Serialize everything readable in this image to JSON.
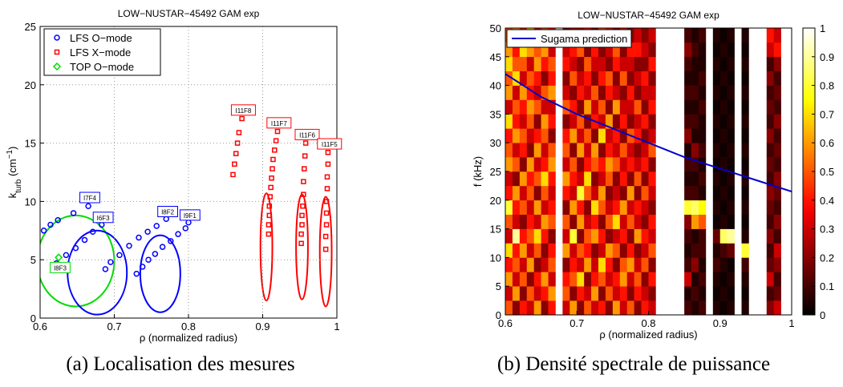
{
  "chart_data": [
    {
      "type": "scatter",
      "title": "LOW−NUSTAR−45492 GAM exp",
      "xlabel": "ρ (normalized radius)",
      "ylabel": [
        "k",
        "turb",
        " (cm",
        "−1",
        ")"
      ],
      "xlim": [
        0.6,
        1
      ],
      "ylim": [
        0,
        25
      ],
      "xticks": [
        0.6,
        0.7,
        0.8,
        0.9,
        1
      ],
      "yticks": [
        0,
        5,
        10,
        15,
        20,
        25
      ],
      "grid": true,
      "legend": "upper-left",
      "caption": "(a) Localisation des mesures",
      "series": [
        {
          "name": "LFS O−mode",
          "color": "#0000ff",
          "marker": "circle",
          "x": [
            0.605,
            0.614,
            0.624,
            0.645,
            0.665,
            0.622,
            0.635,
            0.648,
            0.66,
            0.671,
            0.683,
            0.688,
            0.695,
            0.707,
            0.72,
            0.733,
            0.745,
            0.757,
            0.77,
            0.73,
            0.738,
            0.746,
            0.755,
            0.765,
            0.776,
            0.786,
            0.796,
            0.8
          ],
          "y": [
            7.5,
            8.0,
            8.4,
            9.0,
            9.6,
            4.7,
            5.4,
            6.0,
            6.7,
            7.4,
            8.0,
            4.2,
            4.8,
            5.4,
            6.2,
            6.9,
            7.4,
            7.9,
            8.5,
            3.8,
            4.4,
            5.0,
            5.5,
            6.1,
            6.6,
            7.2,
            7.7,
            8.2
          ]
        },
        {
          "name": "LFS X−mode",
          "color": "#ff0000",
          "marker": "square",
          "x": [
            0.86,
            0.862,
            0.864,
            0.866,
            0.868,
            0.872,
            0.908,
            0.908,
            0.909,
            0.909,
            0.91,
            0.911,
            0.912,
            0.913,
            0.914,
            0.916,
            0.918,
            0.92,
            0.952,
            0.952,
            0.953,
            0.953,
            0.954,
            0.955,
            0.955,
            0.956,
            0.957,
            0.958,
            0.985,
            0.985,
            0.986,
            0.986,
            0.986,
            0.987,
            0.987,
            0.988,
            0.988
          ],
          "y": [
            12.3,
            13.2,
            14.1,
            15.0,
            15.9,
            17.1,
            7.2,
            8.0,
            8.8,
            9.6,
            10.4,
            11.2,
            12.0,
            12.8,
            13.6,
            14.4,
            15.2,
            16.0,
            6.4,
            7.2,
            8.0,
            8.8,
            9.6,
            10.6,
            11.7,
            12.8,
            13.9,
            15.0,
            5.9,
            7.0,
            8.0,
            9.0,
            10.0,
            11.1,
            12.1,
            13.2,
            14.2
          ]
        },
        {
          "name": "TOP O−mode",
          "color": "#00dd00",
          "marker": "diamond",
          "x": [
            0.625
          ],
          "y": [
            5.2
          ]
        }
      ],
      "annotations": [
        {
          "text": "I7F4",
          "x": 0.667,
          "y": 10.3,
          "color": "#0000ff"
        },
        {
          "text": "I6F3",
          "x": 0.685,
          "y": 8.6,
          "color": "#0000ff"
        },
        {
          "text": "I8F2",
          "x": 0.772,
          "y": 9.1,
          "color": "#0000ff"
        },
        {
          "text": "I9F1",
          "x": 0.802,
          "y": 8.8,
          "color": "#0000ff"
        },
        {
          "text": "I8F3",
          "x": 0.627,
          "y": 4.3,
          "color": "#00dd00"
        },
        {
          "text": "I11F8",
          "x": 0.874,
          "y": 17.8,
          "color": "#ff0000"
        },
        {
          "text": "I11F7",
          "x": 0.922,
          "y": 16.7,
          "color": "#ff0000"
        },
        {
          "text": "I11F6",
          "x": 0.96,
          "y": 15.7,
          "color": "#ff0000"
        },
        {
          "text": "I11F5",
          "x": 0.99,
          "y": 14.9,
          "color": "#ff0000"
        }
      ],
      "ellipses": [
        {
          "center": [
            0.648,
            4.9
          ],
          "radii": [
            0.052,
            3.9
          ],
          "color": "#00dd00"
        },
        {
          "center": [
            0.677,
            3.9
          ],
          "radii": [
            0.04,
            3.6
          ],
          "color": "#0000ff"
        },
        {
          "center": [
            0.762,
            3.8
          ],
          "radii": [
            0.027,
            3.3
          ],
          "color": "#0000ff"
        },
        {
          "center": [
            0.905,
            6.1
          ],
          "radii": [
            0.008,
            4.6
          ],
          "color": "#ff0000"
        },
        {
          "center": [
            0.953,
            6.1
          ],
          "radii": [
            0.008,
            4.5
          ],
          "color": "#ff0000"
        },
        {
          "center": [
            0.985,
            5.7
          ],
          "radii": [
            0.008,
            4.7
          ],
          "color": "#ff0000"
        }
      ]
    },
    {
      "type": "heatmap",
      "title": "LOW−NUSTAR−45492 GAM exp",
      "xlabel": "ρ (normalized radius)",
      "ylabel": "f (kHz)",
      "xlim": [
        0.6,
        1
      ],
      "ylim": [
        0,
        50
      ],
      "xticks": [
        0.6,
        0.7,
        0.8,
        0.9,
        1
      ],
      "yticks": [
        0,
        5,
        10,
        15,
        20,
        25,
        30,
        35,
        40,
        45,
        50
      ],
      "legend": "upper-left",
      "colormap": "hot",
      "caption": "(b) Densité spectrale de puissance",
      "colorbar": {
        "lim": [
          0,
          1
        ],
        "ticks": [
          0,
          0.1,
          0.2,
          0.3,
          0.4,
          0.5,
          0.6,
          0.7,
          0.8,
          0.9,
          1
        ]
      },
      "y_edges": [
        0,
        2.5,
        5,
        7.5,
        10,
        12.5,
        15,
        17.5,
        20,
        22.5,
        25,
        27.5,
        30,
        32.5,
        35,
        37.5,
        40,
        42.5,
        45,
        47.5,
        50
      ],
      "x_edges": [
        [
          0.6,
          0.61
        ],
        [
          0.61,
          0.62
        ],
        [
          0.62,
          0.63
        ],
        [
          0.63,
          0.64
        ],
        [
          0.64,
          0.65
        ],
        [
          0.65,
          0.66
        ],
        [
          0.66,
          0.67
        ],
        [
          0.68,
          0.69
        ],
        [
          0.69,
          0.7
        ],
        [
          0.7,
          0.71
        ],
        [
          0.71,
          0.72
        ],
        [
          0.72,
          0.73
        ],
        [
          0.73,
          0.74
        ],
        [
          0.74,
          0.75
        ],
        [
          0.75,
          0.76
        ],
        [
          0.76,
          0.77
        ],
        [
          0.77,
          0.78
        ],
        [
          0.78,
          0.79
        ],
        [
          0.79,
          0.8
        ],
        [
          0.8,
          0.81
        ],
        [
          0.85,
          0.86
        ],
        [
          0.86,
          0.87
        ],
        [
          0.87,
          0.88
        ],
        [
          0.89,
          0.9
        ],
        [
          0.9,
          0.91
        ],
        [
          0.91,
          0.92
        ],
        [
          0.93,
          0.94
        ],
        [
          0.965,
          0.975
        ],
        [
          0.975,
          0.985
        ]
      ],
      "z": [
        [
          0.5,
          0.3,
          0.6,
          0.4,
          0.7,
          0.3,
          0.5,
          0.8,
          0.4,
          0.3,
          0.6,
          0.5,
          0.4,
          0.7,
          0.3,
          0.6,
          0.5,
          0.7,
          0.6,
          0.5
        ],
        [
          0.2,
          0.6,
          0.3,
          0.5,
          0.4,
          0.9,
          0.3,
          0.4,
          0.6,
          0.2,
          0.5,
          0.3,
          0.6,
          0.4,
          0.5,
          0.3,
          0.7,
          0.5,
          0.4,
          0.6
        ],
        [
          0.4,
          0.2,
          0.5,
          0.3,
          0.6,
          0.4,
          0.2,
          0.5,
          0.3,
          0.6,
          0.2,
          0.4,
          0.5,
          0.3,
          0.4,
          0.6,
          0.3,
          0.5,
          0.7,
          0.4
        ],
        [
          0.3,
          0.5,
          0.2,
          0.6,
          0.3,
          0.5,
          0.4,
          0.3,
          0.5,
          0.4,
          0.6,
          0.2,
          0.3,
          0.5,
          0.6,
          0.4,
          0.5,
          0.3,
          0.6,
          0.7
        ],
        [
          0.6,
          0.3,
          0.4,
          0.2,
          0.5,
          0.7,
          0.3,
          0.6,
          0.2,
          0.5,
          0.3,
          0.6,
          0.4,
          0.2,
          0.5,
          0.3,
          0.4,
          0.6,
          0.5,
          0.3
        ],
        [
          0.2,
          0.4,
          0.6,
          0.3,
          0.2,
          0.4,
          0.6,
          0.3,
          0.5,
          0.7,
          0.4,
          0.3,
          0.5,
          0.6,
          0.3,
          0.5,
          0.2,
          0.4,
          0.6,
          0.5
        ],
        [
          0.4,
          0.6,
          0.3,
          0.5,
          0.4,
          0.2,
          0.5,
          0.4,
          0.3,
          0.4,
          0.6,
          0.5,
          0.2,
          0.4,
          0.3,
          0.6,
          0.4,
          0.5,
          0.3,
          0.4
        ],
        [
          0.3,
          0.5,
          0.4,
          0.2,
          0.6,
          0.3,
          0.5,
          0.2,
          0.4,
          0.6,
          0.3,
          0.5,
          0.4,
          0.2,
          0.5,
          0.3,
          0.2,
          0.4,
          0.3,
          0.2
        ],
        [
          0.6,
          0.2,
          0.5,
          0.4,
          0.3,
          0.8,
          0.2,
          0.6,
          0.3,
          0.4,
          0.5,
          0.2,
          0.6,
          0.3,
          0.4,
          0.2,
          0.5,
          0.3,
          0.4,
          0.3
        ],
        [
          0.2,
          0.4,
          0.7,
          0.3,
          0.5,
          0.2,
          0.6,
          0.4,
          0.8,
          0.3,
          0.2,
          0.6,
          0.3,
          0.5,
          0.2,
          0.4,
          0.3,
          0.2,
          0.5,
          0.3
        ],
        [
          0.5,
          0.3,
          0.2,
          0.6,
          0.4,
          0.5,
          0.3,
          0.2,
          0.5,
          0.7,
          0.4,
          0.3,
          0.5,
          0.2,
          0.6,
          0.3,
          0.4,
          0.5,
          0.2,
          0.4
        ],
        [
          0.3,
          0.6,
          0.4,
          0.3,
          0.2,
          0.6,
          0.4,
          0.7,
          0.3,
          0.2,
          0.5,
          0.6,
          0.2,
          0.4,
          0.3,
          0.5,
          0.2,
          0.3,
          0.4,
          0.2
        ],
        [
          0.4,
          0.2,
          0.5,
          0.7,
          0.3,
          0.4,
          0.2,
          0.5,
          0.6,
          0.3,
          0.4,
          0.2,
          0.7,
          0.3,
          0.5,
          0.2,
          0.4,
          0.3,
          0.2,
          0.5
        ],
        [
          0.2,
          0.5,
          0.3,
          0.4,
          0.6,
          0.2,
          0.5,
          0.3,
          0.2,
          0.5,
          0.6,
          0.4,
          0.3,
          0.6,
          0.2,
          0.4,
          0.5,
          0.2,
          0.3,
          0.4
        ],
        [
          0.6,
          0.3,
          0.4,
          0.2,
          0.5,
          0.3,
          0.7,
          0.4,
          0.3,
          0.2,
          0.5,
          0.3,
          0.4,
          0.2,
          0.6,
          0.3,
          0.2,
          0.4,
          0.5,
          0.2
        ],
        [
          0.3,
          0.4,
          0.6,
          0.5,
          0.2,
          0.4,
          0.3,
          0.6,
          0.2,
          0.4,
          0.3,
          0.5,
          0.2,
          0.4,
          0.3,
          0.2,
          0.5,
          0.3,
          0.2,
          0.4
        ],
        [
          0.5,
          0.2,
          0.3,
          0.6,
          0.4,
          0.2,
          0.5,
          0.3,
          0.6,
          0.2,
          0.4,
          0.3,
          0.5,
          0.2,
          0.3,
          0.4,
          0.2,
          0.3,
          0.4,
          0.2
        ],
        [
          0.2,
          0.4,
          0.5,
          0.3,
          0.2,
          0.6,
          0.3,
          0.4,
          0.2,
          0.5,
          0.3,
          0.2,
          0.4,
          0.3,
          0.5,
          0.2,
          0.3,
          0.2,
          0.4,
          0.3
        ],
        [
          0.4,
          0.3,
          0.2,
          0.5,
          0.3,
          0.4,
          0.2,
          0.3,
          0.5,
          0.2,
          0.4,
          0.3,
          0.2,
          0.4,
          0.2,
          0.3,
          0.4,
          0.2,
          0.3,
          0.2
        ],
        [
          0.3,
          0.2,
          0.4,
          0.2,
          0.5,
          0.3,
          0.4,
          0.2,
          0.3,
          0.4,
          0.2,
          0.5,
          0.3,
          0.2,
          0.4,
          0.3,
          0.2,
          0.4,
          0.2,
          0.3
        ],
        [
          0.1,
          0.05,
          0.3,
          0.1,
          0.05,
          0.1,
          0.2,
          0.8,
          0.1,
          0.05,
          0.1,
          0.05,
          0.2,
          0.1,
          0.05,
          0.1,
          0.05,
          0.1,
          0.2,
          0.1
        ],
        [
          0.05,
          0.1,
          0.05,
          0.2,
          0.1,
          0.05,
          0.6,
          0.85,
          0.1,
          0.05,
          0.1,
          0.2,
          0.05,
          0.1,
          0.05,
          0.1,
          0.05,
          0.05,
          0.1,
          0.05
        ],
        [
          0.1,
          0.05,
          0.1,
          0.05,
          0.1,
          0.1,
          0.5,
          0.75,
          0.05,
          0.1,
          0.05,
          0.1,
          0.05,
          0.05,
          0.1,
          0.05,
          0.1,
          0.05,
          0.05,
          0.1
        ],
        [
          0.05,
          0.02,
          0.05,
          0.1,
          0.05,
          0.15,
          0.02,
          0.05,
          0.02,
          0.05,
          0.02,
          0.05,
          0.02,
          0.05,
          0.02,
          0.05,
          0.02,
          0.05,
          0.02,
          0.05
        ],
        [
          0.02,
          0.05,
          0.02,
          0.05,
          0.1,
          0.85,
          0.05,
          0.02,
          0.05,
          0.02,
          0.05,
          0.02,
          0.05,
          0.02,
          0.05,
          0.02,
          0.05,
          0.02,
          0.05,
          0.02
        ],
        [
          0.05,
          0.02,
          0.05,
          0.02,
          0.15,
          0.9,
          0.02,
          0.05,
          0.02,
          0.05,
          0.02,
          0.05,
          0.02,
          0.05,
          0.02,
          0.05,
          0.02,
          0.05,
          0.02,
          0.05
        ],
        [
          0.05,
          0.02,
          0.05,
          0.1,
          0.8,
          0.05,
          0.02,
          0.05,
          0.02,
          0.05,
          0.02,
          0.05,
          0.02,
          0.05,
          0.02,
          0.05,
          0.02,
          0.05,
          0.02,
          0.05
        ],
        [
          0.2,
          0.1,
          0.3,
          0.15,
          0.1,
          0.2,
          0.1,
          0.15,
          0.2,
          0.1,
          0.15,
          0.1,
          0.2,
          0.1,
          0.15,
          0.1,
          0.2,
          0.1,
          0.3,
          0.4
        ],
        [
          0.3,
          0.15,
          0.1,
          0.2,
          0.3,
          0.1,
          0.2,
          0.1,
          0.15,
          0.2,
          0.1,
          0.15,
          0.1,
          0.2,
          0.1,
          0.15,
          0.1,
          0.2,
          0.4,
          0.3
        ]
      ],
      "series": [
        {
          "name": "Sugama prediction",
          "color": "#0000cc",
          "x": [
            0.6,
            0.65,
            0.7,
            0.75,
            0.8,
            0.85,
            0.9,
            0.95,
            1
          ],
          "y": [
            42,
            38,
            35,
            32.5,
            30,
            27.5,
            25.5,
            23.5,
            21.5
          ]
        }
      ]
    }
  ]
}
